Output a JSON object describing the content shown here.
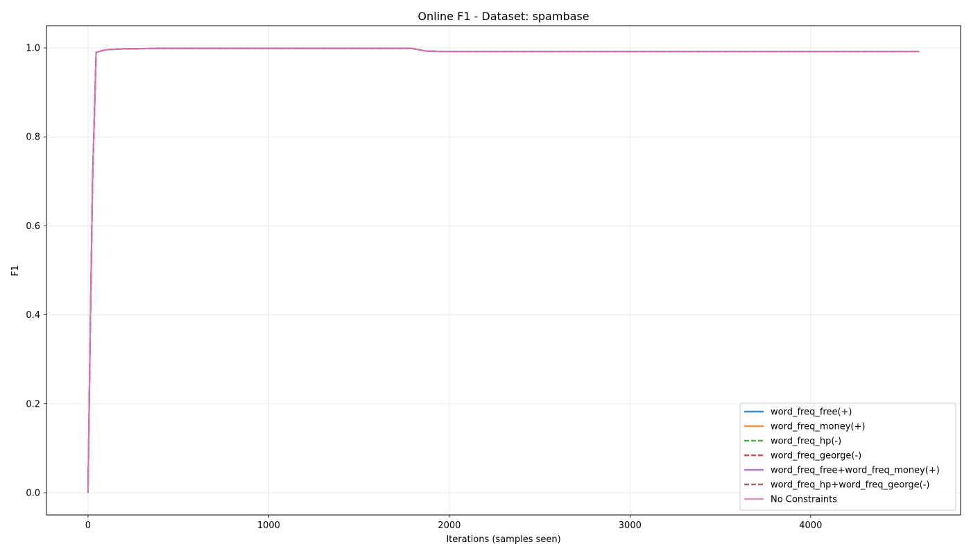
{
  "chart_data": {
    "type": "line",
    "title": "Online F1 - Dataset: spambase",
    "xlabel": "Iterations (samples seen)",
    "ylabel": "F1",
    "xlim": [
      -230,
      4830
    ],
    "ylim": [
      -0.05,
      1.05
    ],
    "xticks": [
      0,
      1000,
      2000,
      3000,
      4000
    ],
    "yticks": [
      0.0,
      0.2,
      0.4,
      0.6,
      0.8,
      1.0
    ],
    "xtick_labels": [
      "0",
      "1000",
      "2000",
      "3000",
      "4000"
    ],
    "ytick_labels": [
      "0.0",
      "0.2",
      "0.4",
      "0.6",
      "0.8",
      "1.0"
    ],
    "grid": true,
    "legend_position": "bottom-right",
    "series": [
      {
        "name": "word_freq_free(+)",
        "color": "#1f77b4",
        "dashed": false,
        "x": [
          0,
          10,
          25,
          45,
          70,
          100,
          200,
          400,
          800,
          1200,
          1600,
          1790,
          1830,
          1870,
          1950,
          2200,
          3000,
          4000,
          4601
        ],
        "y": [
          0.0,
          0.3,
          0.7,
          0.99,
          0.993,
          0.996,
          0.998,
          0.999,
          0.999,
          0.999,
          0.999,
          0.999,
          0.996,
          0.993,
          0.992,
          0.992,
          0.992,
          0.992,
          0.992
        ]
      },
      {
        "name": "word_freq_money(+)",
        "color": "#ff7f0e",
        "dashed": false,
        "x": [
          0,
          10,
          25,
          45,
          70,
          100,
          200,
          400,
          800,
          1200,
          1600,
          1790,
          1830,
          1870,
          1950,
          2200,
          3000,
          4000,
          4601
        ],
        "y": [
          0.0,
          0.3,
          0.7,
          0.99,
          0.993,
          0.996,
          0.998,
          0.999,
          0.999,
          0.999,
          0.999,
          0.999,
          0.996,
          0.993,
          0.992,
          0.992,
          0.992,
          0.992,
          0.992
        ]
      },
      {
        "name": "word_freq_hp(-)",
        "color": "#2ca02c",
        "dashed": true,
        "x": [
          0,
          10,
          25,
          45,
          70,
          100,
          200,
          400,
          800,
          1200,
          1600,
          1790,
          1830,
          1870,
          1950,
          2200,
          3000,
          4000,
          4601
        ],
        "y": [
          0.0,
          0.3,
          0.7,
          0.99,
          0.993,
          0.996,
          0.998,
          0.999,
          0.999,
          0.999,
          0.999,
          0.999,
          0.996,
          0.993,
          0.992,
          0.992,
          0.992,
          0.992,
          0.992
        ]
      },
      {
        "name": "word_freq_george(-)",
        "color": "#d62728",
        "dashed": true,
        "x": [
          0,
          10,
          25,
          45,
          70,
          100,
          200,
          400,
          800,
          1200,
          1600,
          1790,
          1830,
          1870,
          1950,
          2200,
          3000,
          4000,
          4601
        ],
        "y": [
          0.0,
          0.3,
          0.7,
          0.99,
          0.993,
          0.996,
          0.998,
          0.999,
          0.999,
          0.999,
          0.999,
          0.999,
          0.996,
          0.993,
          0.992,
          0.992,
          0.992,
          0.992,
          0.992
        ]
      },
      {
        "name": "word_freq_free+word_freq_money(+)",
        "color": "#9467bd",
        "dashed": false,
        "x": [
          0,
          10,
          25,
          45,
          70,
          100,
          200,
          400,
          800,
          1200,
          1600,
          1790,
          1830,
          1870,
          1950,
          2200,
          3000,
          4000,
          4601
        ],
        "y": [
          0.0,
          0.3,
          0.7,
          0.99,
          0.993,
          0.996,
          0.998,
          0.999,
          0.999,
          0.999,
          0.999,
          0.999,
          0.996,
          0.993,
          0.992,
          0.992,
          0.992,
          0.992,
          0.992
        ]
      },
      {
        "name": "word_freq_hp+word_freq_george(-)",
        "color": "#8c564b",
        "dashed": true,
        "x": [
          0,
          10,
          25,
          45,
          70,
          100,
          200,
          400,
          800,
          1200,
          1600,
          1790,
          1830,
          1870,
          1950,
          2200,
          3000,
          4000,
          4601
        ],
        "y": [
          0.0,
          0.3,
          0.7,
          0.99,
          0.993,
          0.996,
          0.998,
          0.999,
          0.999,
          0.999,
          0.999,
          0.999,
          0.996,
          0.993,
          0.992,
          0.992,
          0.992,
          0.992,
          0.992
        ]
      },
      {
        "name": "No Constraints",
        "color": "#e377c2",
        "dashed": false,
        "x": [
          0,
          10,
          25,
          45,
          70,
          100,
          200,
          400,
          800,
          1200,
          1600,
          1790,
          1830,
          1870,
          1950,
          2200,
          3000,
          4000,
          4601
        ],
        "y": [
          0.0,
          0.3,
          0.7,
          0.99,
          0.993,
          0.996,
          0.998,
          0.999,
          0.999,
          0.999,
          0.999,
          0.999,
          0.996,
          0.993,
          0.992,
          0.992,
          0.992,
          0.992,
          0.992
        ]
      }
    ]
  }
}
